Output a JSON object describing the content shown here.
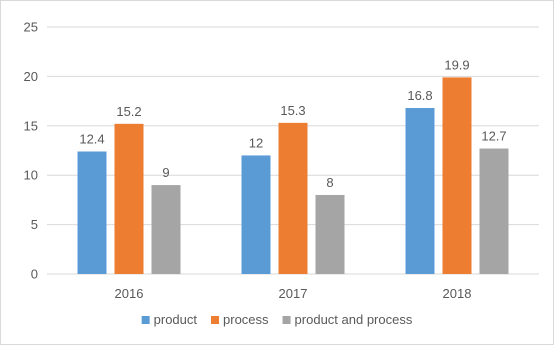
{
  "chart_data": {
    "type": "bar",
    "title": "",
    "xlabel": "",
    "ylabel": "",
    "categories": [
      "2016",
      "2017",
      "2018"
    ],
    "series": [
      {
        "name": "product",
        "color": "#5b9bd5",
        "values": [
          12.4,
          12,
          16.8
        ],
        "labels": [
          "12.4",
          "12",
          "16.8"
        ]
      },
      {
        "name": "process",
        "color": "#ed7d31",
        "values": [
          15.2,
          15.3,
          19.9
        ],
        "labels": [
          "15.2",
          "15.3",
          "19.9"
        ]
      },
      {
        "name": "product and process",
        "color": "#a5a5a5",
        "values": [
          9,
          8,
          12.7
        ],
        "labels": [
          "9",
          "8",
          "12.7"
        ]
      }
    ],
    "ylim": [
      0,
      25
    ],
    "yticks": [
      "0",
      "5",
      "10",
      "15",
      "20",
      "25"
    ],
    "grid": true,
    "legend_position": "bottom",
    "gridline_color": "#d9d9d9"
  }
}
